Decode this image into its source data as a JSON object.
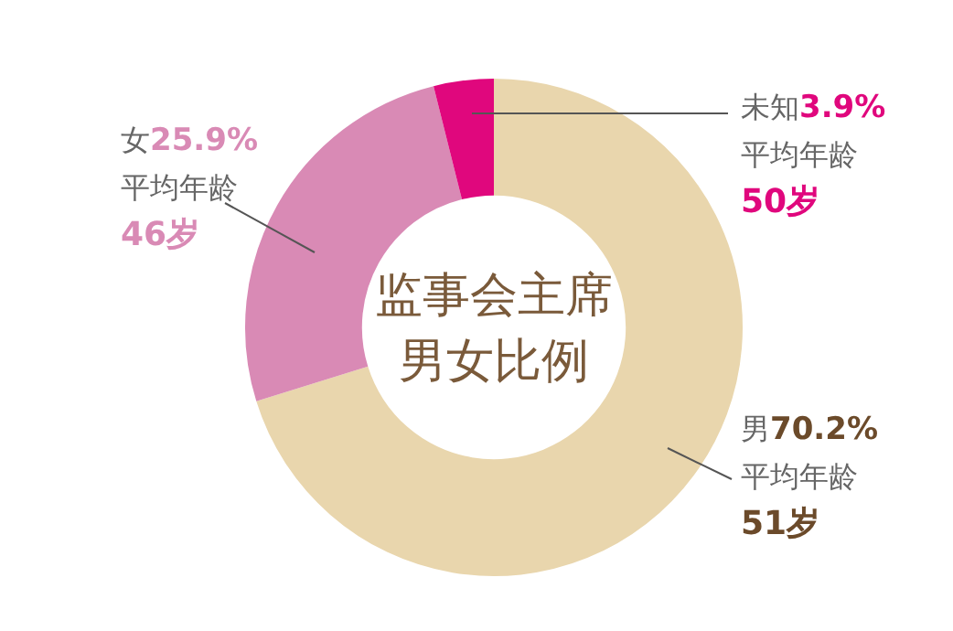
{
  "chart_data": {
    "type": "donut",
    "title": "监事会主席",
    "subtitle": "男女比例",
    "categories": [
      "男",
      "女",
      "未知"
    ],
    "values": [
      70.2,
      25.9,
      3.9
    ],
    "value_labels": [
      "70.2%",
      "25.9%",
      "3.9%"
    ],
    "colors": [
      "#e9d6ad",
      "#d98ab5",
      "#e0077d"
    ],
    "annotations": [
      "平均年龄\n51岁",
      "平均年龄\n46岁",
      "平均年龄\n50岁"
    ]
  }
}
